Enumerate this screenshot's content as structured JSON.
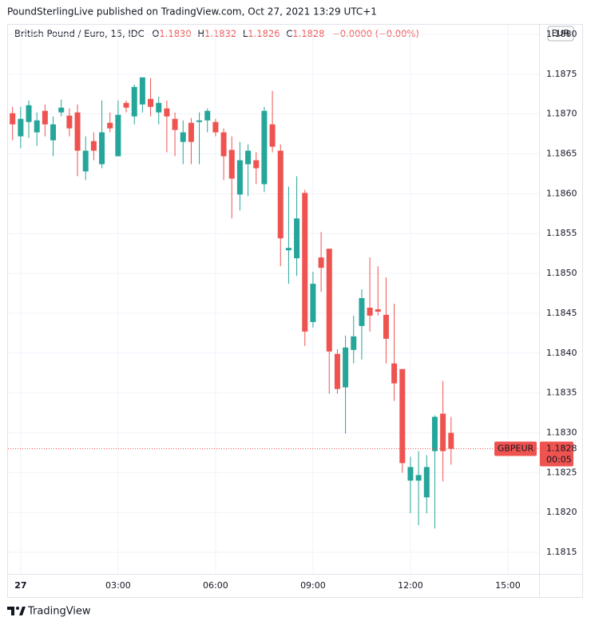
{
  "chart_data": {
    "type": "candlestick",
    "header": "PoundSterlingLive published on TradingView.com, Oct 27, 2021 13:29 UTC+1",
    "title": "British Pound / Euro, 15, IDC",
    "legend": {
      "o": "O",
      "open": "1.1830",
      "h": "H",
      "high": "1.1832",
      "l": "L",
      "low": "1.1826",
      "c": "C",
      "close": "1.1828",
      "change": "−0.0000 (−0.00%)"
    },
    "currency": "EUR",
    "last_price": {
      "name": "GBPEUR",
      "value": 1.1828,
      "countdown": "00:05",
      "color": "#ef5350"
    },
    "up_color": "#26a69a",
    "down_color": "#ef5350",
    "grid": true,
    "brand": "TradingView",
    "xlim": [
      -0.39,
      15.96
    ],
    "xticks": [
      {
        "value": 0,
        "label": "27"
      },
      {
        "value": 3,
        "label": "03:00"
      },
      {
        "value": 6,
        "label": "06:00"
      },
      {
        "value": 9,
        "label": "09:00"
      },
      {
        "value": 12,
        "label": "12:00"
      },
      {
        "value": 15,
        "label": "15:00"
      }
    ],
    "ylim": [
      1.18123,
      1.18812
    ],
    "yticks": [
      1.1815,
      {
        "value": 1.182,
        "label": "1.1820"
      },
      1.1825,
      {
        "value": 1.183,
        "label": "1.1830"
      },
      1.1835,
      {
        "value": 1.184,
        "label": "1.1840"
      },
      1.1845,
      {
        "value": 1.185,
        "label": "1.1850"
      },
      1.1855,
      {
        "value": 1.186,
        "label": "1.1860"
      },
      1.1865,
      {
        "value": 1.187,
        "label": "1.1870"
      },
      1.1875,
      {
        "value": 1.188,
        "label": "1.1880"
      }
    ],
    "x": [
      -0.25,
      0,
      0.25,
      0.5,
      0.75,
      1,
      1.25,
      1.5,
      1.75,
      2,
      2.25,
      2.5,
      2.75,
      3,
      3.25,
      3.5,
      3.75,
      4,
      4.25,
      4.5,
      4.75,
      5,
      5.25,
      5.5,
      5.75,
      6,
      6.25,
      6.5,
      6.75,
      7,
      7.25,
      7.5,
      7.75,
      8,
      8.25,
      8.5,
      8.75,
      9,
      9.25,
      9.5,
      9.75,
      10,
      10.25,
      10.5,
      10.75,
      11,
      11.25,
      11.5,
      11.75,
      12,
      12.25,
      12.5,
      12.75,
      13,
      13.25
    ],
    "open": [
      1.18701,
      1.18672,
      1.1869,
      1.18677,
      1.18704,
      1.18667,
      1.18702,
      1.18698,
      1.18702,
      1.18628,
      1.18666,
      1.18637,
      1.18689,
      1.18647,
      1.18714,
      1.18697,
      1.18712,
      1.18719,
      1.18702,
      1.18707,
      1.18694,
      1.18665,
      1.18689,
      1.1869,
      1.18692,
      1.1869,
      1.18677,
      1.18655,
      1.18599,
      1.18637,
      1.18642,
      1.18612,
      1.18687,
      1.18654,
      1.18529,
      1.18519,
      1.18601,
      1.18439,
      1.1852,
      1.18531,
      1.18399,
      1.18357,
      1.18404,
      1.18434,
      1.18457,
      1.18455,
      1.18448,
      1.18387,
      1.1838,
      1.1824,
      1.1824,
      1.18219,
      1.18277,
      1.18324,
      1.183
    ],
    "high": [
      1.18709,
      1.18709,
      1.18717,
      1.18702,
      1.18712,
      1.18697,
      1.18718,
      1.18707,
      1.18712,
      1.18672,
      1.18677,
      1.18717,
      1.18702,
      1.18717,
      1.18717,
      1.18737,
      1.18746,
      1.18745,
      1.18722,
      1.18717,
      1.18702,
      1.18692,
      1.18695,
      1.18702,
      1.18707,
      1.18694,
      1.18682,
      1.18672,
      1.18665,
      1.18662,
      1.18652,
      1.18709,
      1.18729,
      1.18662,
      1.18609,
      1.18622,
      1.18605,
      1.18502,
      1.18552,
      1.18531,
      1.18405,
      1.18422,
      1.18447,
      1.1848,
      1.1852,
      1.18509,
      1.18495,
      1.18462,
      1.1838,
      1.1827,
      1.18277,
      1.18272,
      1.18322,
      1.18365,
      1.1832
    ],
    "low": [
      1.18667,
      1.18657,
      1.1867,
      1.1866,
      1.18672,
      1.18647,
      1.18697,
      1.18672,
      1.18622,
      1.18617,
      1.18642,
      1.18632,
      1.18677,
      1.18647,
      1.18702,
      1.18687,
      1.18702,
      1.18697,
      1.18687,
      1.18652,
      1.18647,
      1.18637,
      1.18637,
      1.18637,
      1.18677,
      1.18672,
      1.18617,
      1.18569,
      1.18579,
      1.18597,
      1.18612,
      1.18602,
      1.18652,
      1.18509,
      1.18487,
      1.18497,
      1.18409,
      1.18432,
      1.18477,
      1.18349,
      1.18349,
      1.18299,
      1.18387,
      1.18392,
      1.18427,
      1.18447,
      1.18387,
      1.1834,
      1.1825,
      1.18199,
      1.18184,
      1.18199,
      1.1818,
      1.18239,
      1.1826
    ],
    "close": [
      1.18687,
      1.18694,
      1.18711,
      1.18692,
      1.18687,
      1.18687,
      1.18708,
      1.18682,
      1.18654,
      1.18654,
      1.18654,
      1.18677,
      1.18682,
      1.18699,
      1.18708,
      1.18734,
      1.18746,
      1.18709,
      1.18714,
      1.18697,
      1.1868,
      1.18677,
      1.18665,
      1.18692,
      1.18704,
      1.18677,
      1.18647,
      1.18619,
      1.18642,
      1.18654,
      1.18632,
      1.18704,
      1.18659,
      1.18544,
      1.18532,
      1.18569,
      1.18427,
      1.18487,
      1.18507,
      1.18402,
      1.18355,
      1.18407,
      1.18421,
      1.18469,
      1.18447,
      1.18452,
      1.18418,
      1.18362,
      1.18262,
      1.18257,
      1.18247,
      1.18257,
      1.1832,
      1.18277,
      1.1828
    ]
  }
}
